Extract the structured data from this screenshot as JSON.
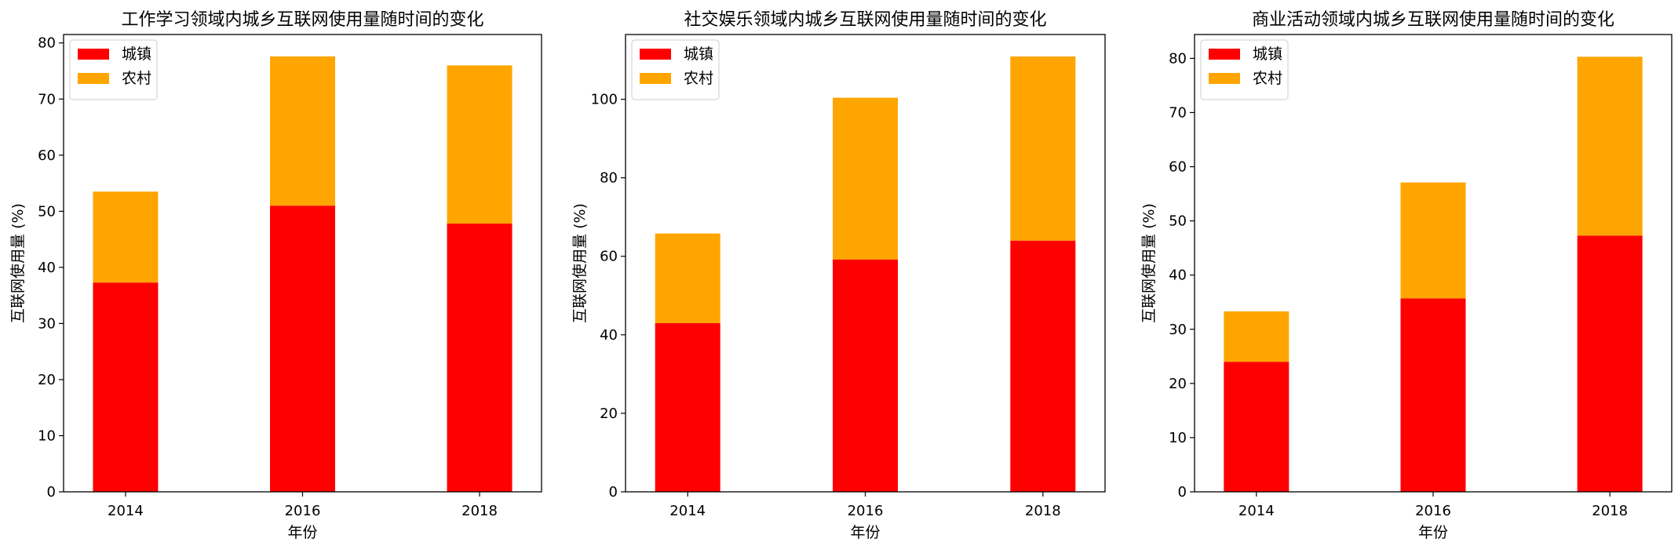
{
  "figure": {
    "charts": [
      {
        "type": "bar",
        "stacked": true,
        "title": "工作学习领域内城乡互联网使用量随时间的变化",
        "xlabel": "年份",
        "ylabel": "互联网使用量 (%)",
        "categories": [
          "2014",
          "2016",
          "2018"
        ],
        "series": [
          {
            "name": "城镇",
            "color": "#ff0000",
            "values": [
              37.3,
              51.0,
              47.8
            ]
          },
          {
            "name": "农村",
            "color": "#ffa500",
            "values": [
              16.2,
              26.6,
              28.2
            ]
          }
        ],
        "ylim": [
          0,
          81.5
        ],
        "yticks": [
          0,
          10,
          20,
          30,
          40,
          50,
          60,
          70,
          80
        ],
        "legend": "top-left",
        "grid": false
      },
      {
        "type": "bar",
        "stacked": true,
        "title": "社交娱乐领域内城乡互联网使用量随时间的变化",
        "xlabel": "年份",
        "ylabel": "互联网使用量 (%)",
        "categories": [
          "2014",
          "2016",
          "2018"
        ],
        "series": [
          {
            "name": "城镇",
            "color": "#ff0000",
            "values": [
              43.0,
              59.2,
              64.0
            ]
          },
          {
            "name": "农村",
            "color": "#ffa500",
            "values": [
              22.8,
              41.2,
              46.9
            ]
          }
        ],
        "ylim": [
          0,
          116.5
        ],
        "yticks": [
          0,
          20,
          40,
          60,
          80,
          100
        ],
        "legend": "top-left",
        "grid": false
      },
      {
        "type": "bar",
        "stacked": true,
        "title": "商业活动领域内城乡互联网使用量随时间的变化",
        "xlabel": "年份",
        "ylabel": "互联网使用量 (%)",
        "categories": [
          "2014",
          "2016",
          "2018"
        ],
        "series": [
          {
            "name": "城镇",
            "color": "#ff0000",
            "values": [
              24.0,
              35.7,
              47.3
            ]
          },
          {
            "name": "农村",
            "color": "#ffa500",
            "values": [
              9.3,
              21.4,
              33.0
            ]
          }
        ],
        "ylim": [
          0,
          84.4
        ],
        "yticks": [
          0,
          10,
          20,
          30,
          40,
          50,
          60,
          70,
          80
        ],
        "legend": "top-left",
        "grid": false
      }
    ]
  },
  "chart_data": [
    {
      "type": "bar",
      "title": "工作学习领域内城乡互联网使用量随时间的变化",
      "categories": [
        "2014",
        "2016",
        "2018"
      ],
      "series": [
        {
          "name": "城镇",
          "values": [
            37.3,
            51.0,
            47.8
          ]
        },
        {
          "name": "农村",
          "values": [
            16.2,
            26.6,
            28.2
          ]
        }
      ],
      "xlabel": "年份",
      "ylabel": "互联网使用量 (%)",
      "ylim": [
        0,
        81.5
      ]
    },
    {
      "type": "bar",
      "title": "社交娱乐领域内城乡互联网使用量随时间的变化",
      "categories": [
        "2014",
        "2016",
        "2018"
      ],
      "series": [
        {
          "name": "城镇",
          "values": [
            43.0,
            59.2,
            64.0
          ]
        },
        {
          "name": "农村",
          "values": [
            22.8,
            41.2,
            46.9
          ]
        }
      ],
      "xlabel": "年份",
      "ylabel": "互联网使用量 (%)",
      "ylim": [
        0,
        116.5
      ]
    },
    {
      "type": "bar",
      "title": "商业活动领域内城乡互联网使用量随时间的变化",
      "categories": [
        "2014",
        "2016",
        "2018"
      ],
      "series": [
        {
          "name": "城镇",
          "values": [
            24.0,
            35.7,
            47.3
          ]
        },
        {
          "name": "农村",
          "values": [
            9.3,
            21.4,
            33.0
          ]
        }
      ],
      "xlabel": "年份",
      "ylabel": "互联网使用量 (%)",
      "ylim": [
        0,
        84.4
      ]
    }
  ]
}
